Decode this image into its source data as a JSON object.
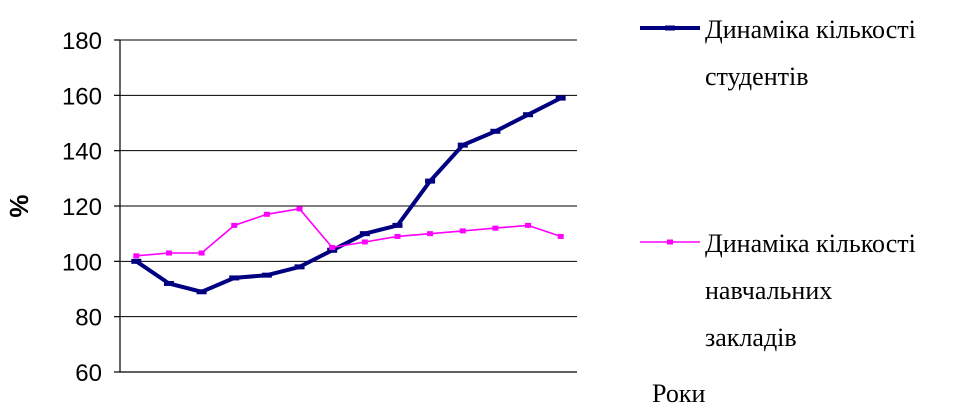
{
  "chart_data": {
    "type": "line",
    "ylabel": "%",
    "xlabel": "Роки",
    "ylim": [
      60,
      180
    ],
    "yticks": [
      60,
      80,
      100,
      120,
      140,
      160,
      180
    ],
    "grid": true,
    "legend_position": "right",
    "x": [
      1,
      2,
      3,
      4,
      5,
      6,
      7,
      8,
      9,
      10,
      11,
      12,
      13,
      14
    ],
    "series": [
      {
        "name_lines": [
          "Динаміка кількості",
          "студентів"
        ],
        "color": "#000080",
        "values": [
          100,
          92,
          89,
          94,
          95,
          98,
          104,
          110,
          113,
          129,
          142,
          147,
          153,
          159
        ]
      },
      {
        "name_lines": [
          "Динаміка кількості",
          "навчальних",
          "закладів"
        ],
        "color": "#FF00FF",
        "values": [
          102,
          103,
          103,
          113,
          117,
          119,
          105,
          107,
          109,
          110,
          111,
          112,
          113,
          109
        ]
      }
    ]
  }
}
